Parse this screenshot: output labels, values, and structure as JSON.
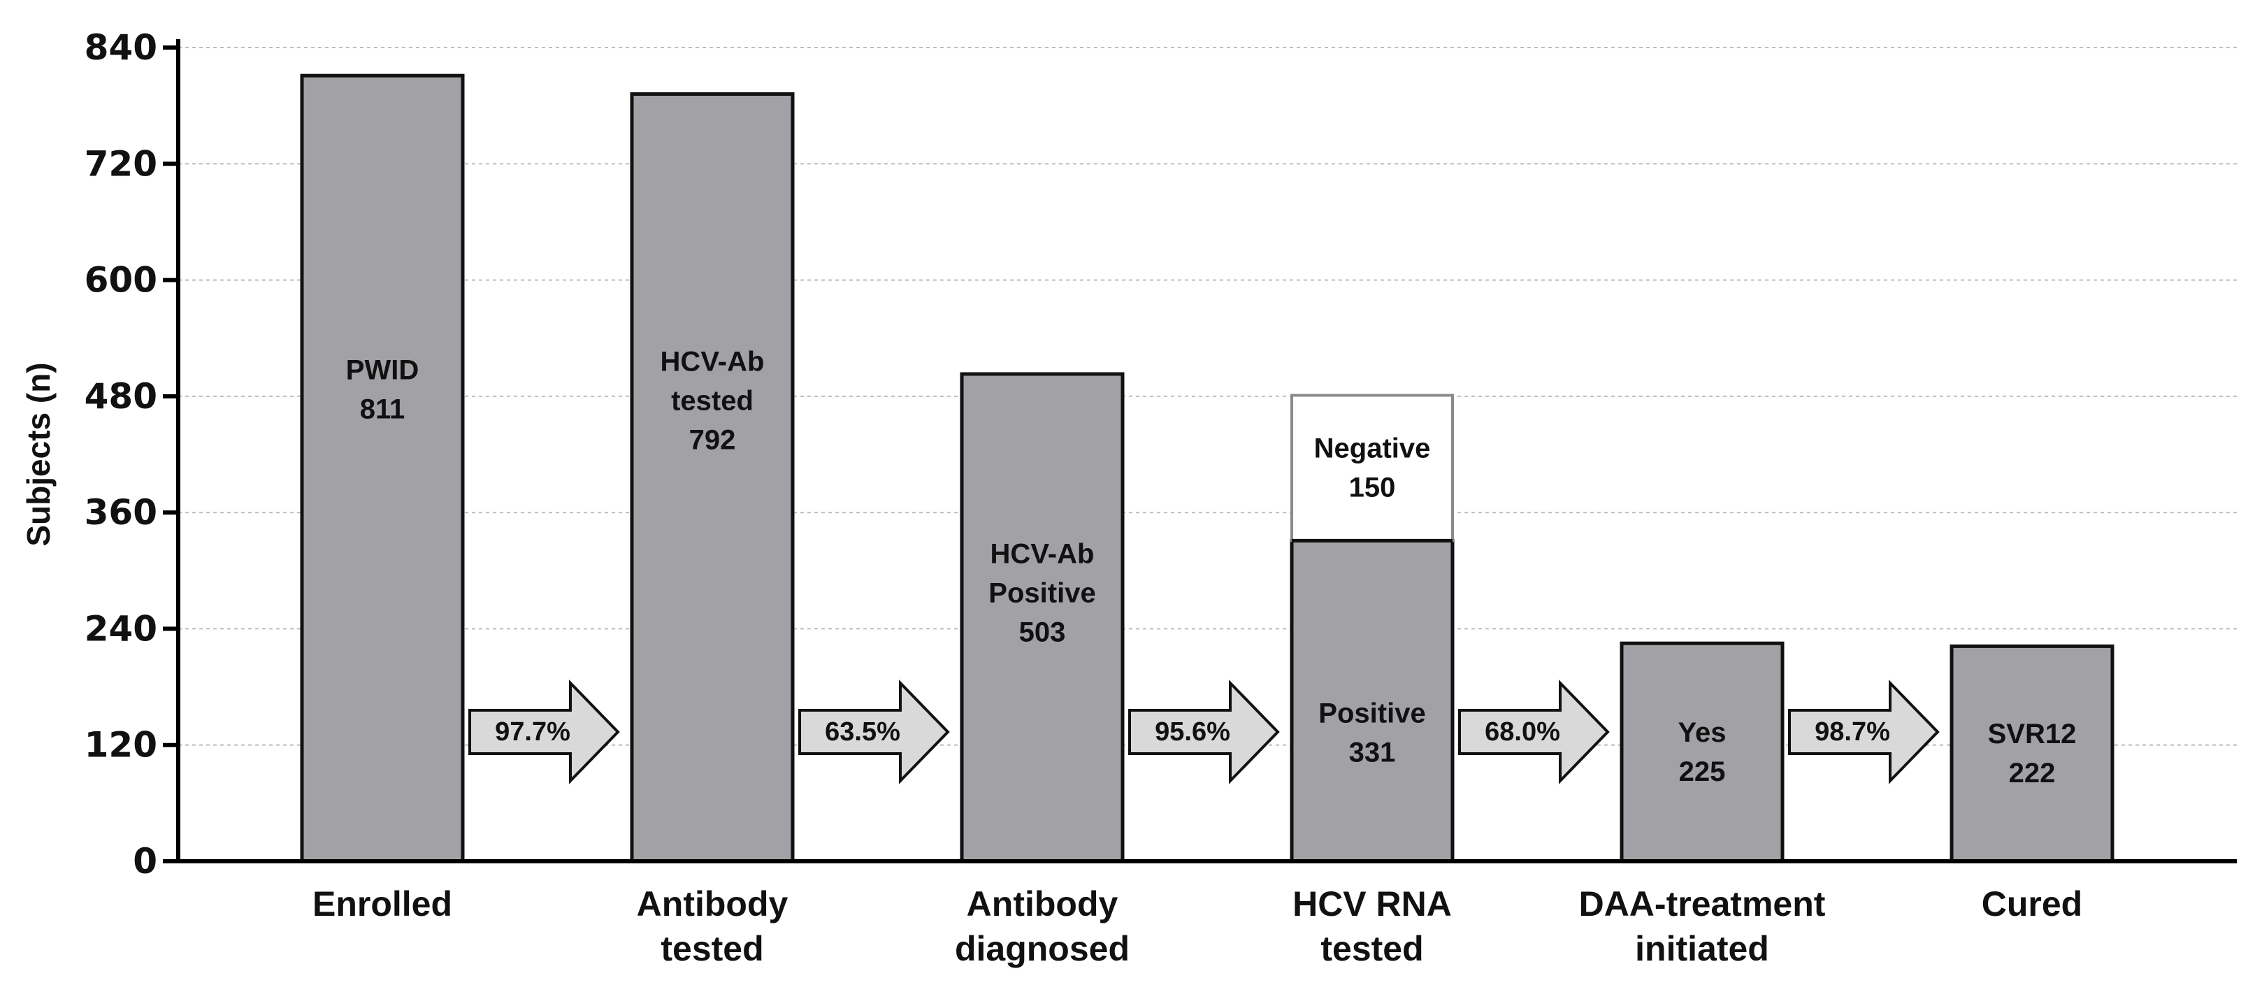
{
  "chart_data": {
    "type": "bar",
    "title": "",
    "xlabel": "",
    "ylabel": "Subjects (n)",
    "ylim": [
      0,
      840
    ],
    "yticks": [
      0,
      120,
      240,
      360,
      480,
      600,
      720,
      840
    ],
    "grid": "horizontal dotted",
    "categories": [
      [
        "Enrolled"
      ],
      [
        "Antibody",
        "tested"
      ],
      [
        "Antibody",
        "diagnosed"
      ],
      [
        "HCV RNA",
        "tested"
      ],
      [
        "DAA-treatment",
        "initiated"
      ],
      [
        "Cured"
      ]
    ],
    "bars": [
      {
        "value": 811,
        "label": [
          "PWID",
          "811"
        ]
      },
      {
        "value": 792,
        "label": [
          "HCV-Ab",
          "tested",
          "792"
        ]
      },
      {
        "value": 503,
        "label": [
          "HCV-Ab",
          "Positive",
          "503"
        ]
      },
      {
        "value": 331,
        "label": [
          "Positive",
          "331"
        ],
        "stacked": {
          "value": 150,
          "label": [
            "Negative",
            "150"
          ]
        }
      },
      {
        "value": 225,
        "label": [
          "Yes",
          "225"
        ]
      },
      {
        "value": 222,
        "label": [
          "SVR12",
          "222"
        ]
      }
    ],
    "transitions": [
      "97.7%",
      "63.5%",
      "95.6%",
      "68.0%",
      "98.7%"
    ],
    "colors": {
      "bar_fill": "#a1a1a6",
      "bar_stroke": "#111111",
      "stack_fill": "#ffffff",
      "stack_stroke": "#8a8a8a",
      "arrow_fill": "#d9d9d9",
      "grid": "#bdbdbd",
      "axis": "#000000"
    }
  }
}
